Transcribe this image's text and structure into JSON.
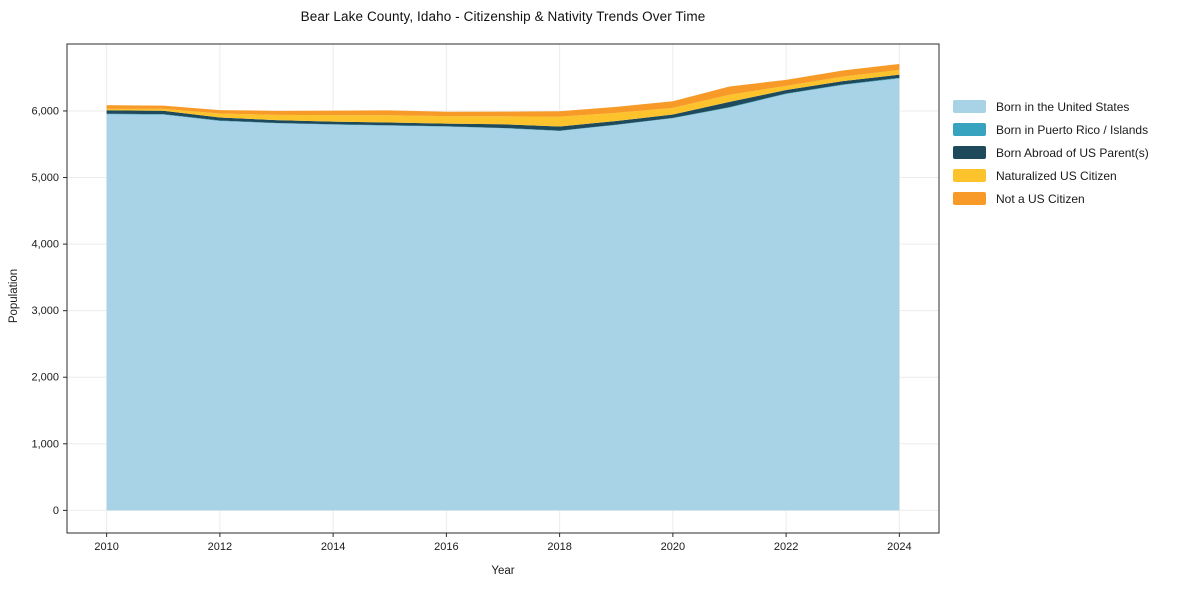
{
  "title": "Bear Lake County, Idaho - Citizenship & Nativity Trends Over Time",
  "chart_data": {
    "type": "area",
    "stacked": true,
    "title": "Bear Lake County, Idaho - Citizenship & Nativity Trends Over Time",
    "xlabel": "Year",
    "ylabel": "Population",
    "x": [
      2010,
      2011,
      2012,
      2013,
      2014,
      2015,
      2016,
      2017,
      2018,
      2019,
      2020,
      2021,
      2022,
      2023,
      2024
    ],
    "series": [
      {
        "name": "Born in the United States",
        "color": "#a8d2e6",
        "values": [
          5950,
          5945,
          5850,
          5815,
          5795,
          5780,
          5765,
          5740,
          5700,
          5790,
          5890,
          6050,
          6255,
          6390,
          6490
        ]
      },
      {
        "name": "Born in Puerto Rico / Islands",
        "color": "#38a3bf",
        "values": [
          8,
          8,
          6,
          5,
          5,
          5,
          5,
          5,
          5,
          5,
          6,
          8,
          8,
          8,
          8
        ]
      },
      {
        "name": "Born Abroad of US Parent(s)",
        "color": "#1f4a5c",
        "values": [
          52,
          50,
          45,
          42,
          40,
          42,
          40,
          55,
          62,
          55,
          50,
          78,
          52,
          50,
          48
        ]
      },
      {
        "name": "Naturalized US Citizen",
        "color": "#fcc32d",
        "values": [
          22,
          28,
          60,
          80,
          98,
          108,
          112,
          120,
          148,
          122,
          100,
          108,
          62,
          68,
          70
        ]
      },
      {
        "name": "Not a US Citizen",
        "color": "#f79a28",
        "values": [
          55,
          50,
          52,
          60,
          68,
          74,
          66,
          70,
          80,
          90,
          100,
          124,
          90,
          92,
          90
        ]
      }
    ],
    "x_ticks": [
      2010,
      2012,
      2014,
      2016,
      2018,
      2020,
      2022,
      2024
    ],
    "x_tick_labels": [
      "2010",
      "2012",
      "2014",
      "2016",
      "2018",
      "2020",
      "2022",
      "2024"
    ],
    "y_ticks": [
      0,
      1000,
      2000,
      3000,
      4000,
      5000,
      6000
    ],
    "y_tick_labels": [
      "0",
      "1,000",
      "2,000",
      "3,000",
      "4,000",
      "5,000",
      "6,000"
    ],
    "xlim": [
      2009.3,
      2024.7
    ],
    "ylim": [
      -340,
      7006
    ],
    "grid": true,
    "legend_position": "right"
  },
  "colors": {
    "background": "#ffffff",
    "gridline": "#ececec",
    "spine": "#2b2b2b",
    "tick_text": "#1a1a1a",
    "title_text": "#111111"
  }
}
